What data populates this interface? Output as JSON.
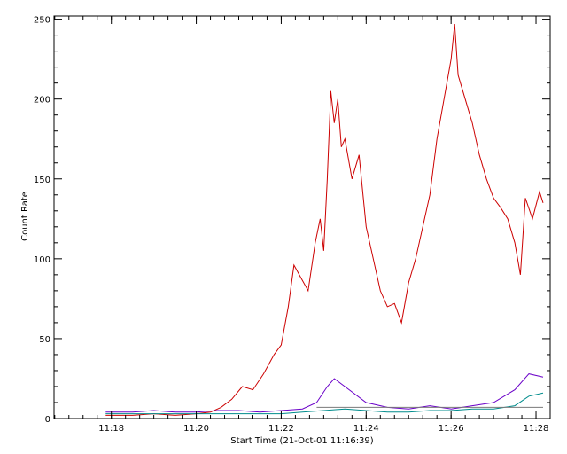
{
  "chart_data": {
    "type": "line",
    "title": "",
    "xlabel": "Start Time (21-Oct-01 11:16:39)",
    "ylabel": "Count Rate",
    "x_unit": "minutes after 11:16:39",
    "xlim_time": [
      "11:16:39",
      "11:28:20"
    ],
    "ylim": [
      0,
      252
    ],
    "x_ticks": [
      "11:18",
      "11:20",
      "11:22",
      "11:24",
      "11:26",
      "11:28"
    ],
    "y_ticks": [
      "0",
      "50",
      "100",
      "150",
      "200",
      "250"
    ],
    "grid": false,
    "legend": "none",
    "series": [
      {
        "color": "#cc0000",
        "points": [
          [
            "11:17:52",
            2
          ],
          [
            "11:18:30",
            2
          ],
          [
            "11:19:00",
            3
          ],
          [
            "11:19:30",
            2
          ],
          [
            "11:20:00",
            3
          ],
          [
            "11:20:20",
            4
          ],
          [
            "11:20:35",
            7
          ],
          [
            "11:20:50",
            12
          ],
          [
            "11:21:05",
            20
          ],
          [
            "11:21:20",
            18
          ],
          [
            "11:21:35",
            28
          ],
          [
            "11:21:50",
            40
          ],
          [
            "11:22:00",
            46
          ],
          [
            "11:22:10",
            70
          ],
          [
            "11:22:18",
            96
          ],
          [
            "11:22:28",
            88
          ],
          [
            "11:22:38",
            80
          ],
          [
            "11:22:48",
            110
          ],
          [
            "11:22:55",
            125
          ],
          [
            "11:23:00",
            105
          ],
          [
            "11:23:05",
            150
          ],
          [
            "11:23:10",
            205
          ],
          [
            "11:23:15",
            185
          ],
          [
            "11:23:20",
            200
          ],
          [
            "11:23:25",
            170
          ],
          [
            "11:23:30",
            175
          ],
          [
            "11:23:40",
            150
          ],
          [
            "11:23:50",
            165
          ],
          [
            "11:24:00",
            120
          ],
          [
            "11:24:10",
            100
          ],
          [
            "11:24:20",
            80
          ],
          [
            "11:24:30",
            70
          ],
          [
            "11:24:40",
            72
          ],
          [
            "11:24:50",
            60
          ],
          [
            "11:25:00",
            85
          ],
          [
            "11:25:10",
            100
          ],
          [
            "11:25:20",
            120
          ],
          [
            "11:25:30",
            140
          ],
          [
            "11:25:40",
            175
          ],
          [
            "11:25:50",
            200
          ],
          [
            "11:26:00",
            225
          ],
          [
            "11:26:05",
            247
          ],
          [
            "11:26:10",
            215
          ],
          [
            "11:26:20",
            200
          ],
          [
            "11:26:30",
            185
          ],
          [
            "11:26:40",
            165
          ],
          [
            "11:26:50",
            150
          ],
          [
            "11:27:00",
            138
          ],
          [
            "11:27:10",
            132
          ],
          [
            "11:27:20",
            125
          ],
          [
            "11:27:30",
            110
          ],
          [
            "11:27:38",
            90
          ],
          [
            "11:27:45",
            138
          ],
          [
            "11:27:55",
            125
          ],
          [
            "11:28:05",
            142
          ],
          [
            "11:28:10",
            135
          ]
        ]
      },
      {
        "color": "#6a00c8",
        "points": [
          [
            "11:17:52",
            4
          ],
          [
            "11:18:30",
            4
          ],
          [
            "11:19:00",
            5
          ],
          [
            "11:19:30",
            4
          ],
          [
            "11:20:00",
            4
          ],
          [
            "11:20:30",
            5
          ],
          [
            "11:21:00",
            5
          ],
          [
            "11:21:30",
            4
          ],
          [
            "11:22:00",
            5
          ],
          [
            "11:22:30",
            6
          ],
          [
            "11:22:50",
            10
          ],
          [
            "11:23:05",
            20
          ],
          [
            "11:23:15",
            25
          ],
          [
            "11:23:30",
            20
          ],
          [
            "11:24:00",
            10
          ],
          [
            "11:24:30",
            7
          ],
          [
            "11:25:00",
            6
          ],
          [
            "11:25:30",
            8
          ],
          [
            "11:26:00",
            6
          ],
          [
            "11:26:30",
            8
          ],
          [
            "11:27:00",
            10
          ],
          [
            "11:27:30",
            18
          ],
          [
            "11:27:50",
            28
          ],
          [
            "11:28:10",
            26
          ]
        ]
      },
      {
        "color": "#008c8c",
        "points": [
          [
            "11:17:52",
            3
          ],
          [
            "11:18:30",
            3
          ],
          [
            "11:19:00",
            3
          ],
          [
            "11:19:30",
            3
          ],
          [
            "11:20:00",
            3
          ],
          [
            "11:20:30",
            3
          ],
          [
            "11:21:00",
            3
          ],
          [
            "11:21:30",
            3
          ],
          [
            "11:22:00",
            3
          ],
          [
            "11:22:30",
            4
          ],
          [
            "11:23:00",
            5
          ],
          [
            "11:23:30",
            6
          ],
          [
            "11:24:00",
            5
          ],
          [
            "11:24:30",
            4
          ],
          [
            "11:25:00",
            4
          ],
          [
            "11:25:30",
            5
          ],
          [
            "11:26:00",
            5
          ],
          [
            "11:26:30",
            6
          ],
          [
            "11:27:00",
            6
          ],
          [
            "11:27:30",
            8
          ],
          [
            "11:27:50",
            14
          ],
          [
            "11:28:10",
            16
          ]
        ]
      },
      {
        "color": "#7a7a7a",
        "points": [
          [
            "11:22:50",
            7
          ],
          [
            "11:28:10",
            7
          ]
        ]
      }
    ]
  }
}
